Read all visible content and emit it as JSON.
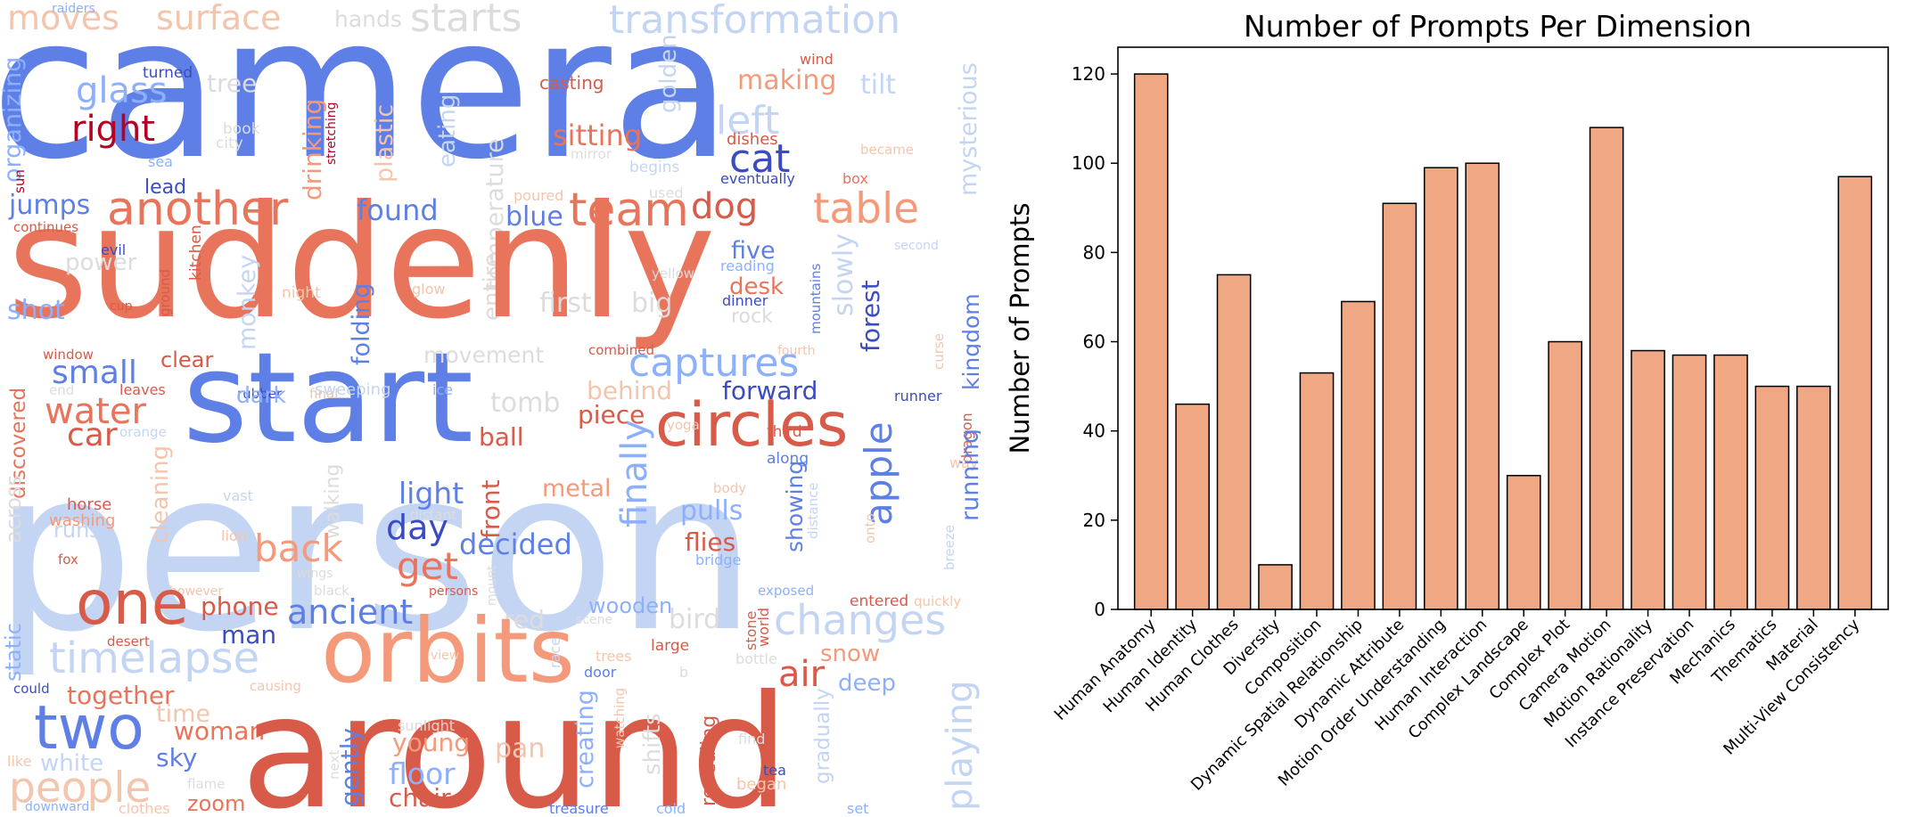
{
  "wordcloud": {
    "palette": {
      "blue_dark": "#3b4cc0",
      "blue": "#5e7fe5",
      "blue_mid": "#8db0fe",
      "blue_light": "#c4d5f3",
      "grey": "#dddcdc",
      "peach": "#f4c5ad",
      "orange_light": "#f49a7b",
      "orange": "#e7745b",
      "red": "#d85a48",
      "red_dark": "#b40426"
    },
    "words": [
      {
        "text": "moves",
        "c": "peach"
      },
      {
        "text": "surface",
        "c": "peach"
      },
      {
        "text": "hands",
        "c": "grey"
      },
      {
        "text": "starts",
        "c": "grey"
      },
      {
        "text": "transformation",
        "c": "blue_light"
      },
      {
        "text": "camera",
        "c": "blue"
      },
      {
        "text": "glass",
        "c": "blue_mid"
      },
      {
        "text": "tree",
        "c": "grey"
      },
      {
        "text": "right",
        "c": "red_dark"
      },
      {
        "text": "organizing",
        "c": "blue_mid"
      },
      {
        "text": "book",
        "c": "grey"
      },
      {
        "text": "city",
        "c": "grey"
      },
      {
        "text": "sea",
        "c": "blue_mid"
      },
      {
        "text": "lead",
        "c": "blue_dark"
      },
      {
        "text": "sun",
        "c": "red_dark"
      },
      {
        "text": "turned",
        "c": "blue_dark"
      },
      {
        "text": "raiders",
        "c": "blue_mid"
      },
      {
        "text": "stretching",
        "c": "red_dark"
      },
      {
        "text": "drinking",
        "c": "orange_light"
      },
      {
        "text": "plastic",
        "c": "peach"
      },
      {
        "text": "eating",
        "c": "blue_light"
      },
      {
        "text": "temperature",
        "c": "grey"
      },
      {
        "text": "entire",
        "c": "grey"
      },
      {
        "text": "golden",
        "c": "blue_light"
      },
      {
        "text": "casting",
        "c": "red"
      },
      {
        "text": "wind",
        "c": "red"
      },
      {
        "text": "making",
        "c": "orange_light"
      },
      {
        "text": "tilt",
        "c": "blue_light"
      },
      {
        "text": "mysterious",
        "c": "blue_light"
      },
      {
        "text": "left",
        "c": "blue_light"
      },
      {
        "text": "sitting",
        "c": "orange"
      },
      {
        "text": "mirror",
        "c": "grey"
      },
      {
        "text": "dishes",
        "c": "red"
      },
      {
        "text": "became",
        "c": "peach"
      },
      {
        "text": "begins",
        "c": "blue_light"
      },
      {
        "text": "cat",
        "c": "blue_dark"
      },
      {
        "text": "eventually",
        "c": "blue_dark"
      },
      {
        "text": "box",
        "c": "orange"
      },
      {
        "text": "used",
        "c": "grey"
      },
      {
        "text": "poured",
        "c": "peach"
      },
      {
        "text": "suddenly",
        "c": "orange"
      },
      {
        "text": "another",
        "c": "orange"
      },
      {
        "text": "jumps",
        "c": "blue"
      },
      {
        "text": "continues",
        "c": "red"
      },
      {
        "text": "found",
        "c": "blue"
      },
      {
        "text": "blue",
        "c": "blue"
      },
      {
        "text": "team",
        "c": "orange"
      },
      {
        "text": "dog",
        "c": "red"
      },
      {
        "text": "table",
        "c": "orange_light"
      },
      {
        "text": "five",
        "c": "blue"
      },
      {
        "text": "second",
        "c": "blue_light"
      },
      {
        "text": "evil",
        "c": "blue_dark"
      },
      {
        "text": "kitchen",
        "c": "red"
      },
      {
        "text": "power",
        "c": "grey"
      },
      {
        "text": "glow",
        "c": "peach"
      },
      {
        "text": "night",
        "c": "peach"
      },
      {
        "text": "desk",
        "c": "orange"
      },
      {
        "text": "reading",
        "c": "blue_mid"
      },
      {
        "text": "yellow",
        "c": "grey"
      },
      {
        "text": "dinner",
        "c": "blue_dark"
      },
      {
        "text": "slowly",
        "c": "blue_light"
      },
      {
        "text": "forest",
        "c": "blue_dark"
      },
      {
        "text": "mountains",
        "c": "blue"
      },
      {
        "text": "cup",
        "c": "red"
      },
      {
        "text": "ground",
        "c": "red"
      },
      {
        "text": "shot",
        "c": "blue_mid"
      },
      {
        "text": "monkey",
        "c": "blue_light"
      },
      {
        "text": "folding",
        "c": "blue"
      },
      {
        "text": "first",
        "c": "grey"
      },
      {
        "text": "big",
        "c": "grey"
      },
      {
        "text": "rock",
        "c": "grey"
      },
      {
        "text": "start",
        "c": "blue"
      },
      {
        "text": "window",
        "c": "red"
      },
      {
        "text": "small",
        "c": "blue"
      },
      {
        "text": "clear",
        "c": "red"
      },
      {
        "text": "rubber",
        "c": "blue_dark"
      },
      {
        "text": "final",
        "c": "peach"
      },
      {
        "text": "discovered",
        "c": "orange"
      },
      {
        "text": "movement",
        "c": "grey"
      },
      {
        "text": "combined",
        "c": "red"
      },
      {
        "text": "fourth",
        "c": "peach"
      },
      {
        "text": "captures",
        "c": "blue_mid"
      },
      {
        "text": "kingdom",
        "c": "blue"
      },
      {
        "text": "curse",
        "c": "peach"
      },
      {
        "text": "end",
        "c": "grey"
      },
      {
        "text": "leaves",
        "c": "red"
      },
      {
        "text": "water",
        "c": "orange"
      },
      {
        "text": "dark",
        "c": "blue_mid"
      },
      {
        "text": "sweeping",
        "c": "blue_light"
      },
      {
        "text": "ice",
        "c": "blue_mid"
      },
      {
        "text": "tomb",
        "c": "grey"
      },
      {
        "text": "behind",
        "c": "peach"
      },
      {
        "text": "forward",
        "c": "blue_dark"
      },
      {
        "text": "runner",
        "c": "blue_dark"
      },
      {
        "text": "circles",
        "c": "red"
      },
      {
        "text": "dragon",
        "c": "red"
      },
      {
        "text": "car",
        "c": "red"
      },
      {
        "text": "orange",
        "c": "blue_light"
      },
      {
        "text": "piece",
        "c": "red"
      },
      {
        "text": "yoga",
        "c": "peach"
      },
      {
        "text": "third",
        "c": "red"
      },
      {
        "text": "person",
        "c": "blue_light"
      },
      {
        "text": "ball",
        "c": "red"
      },
      {
        "text": "along",
        "c": "blue"
      },
      {
        "text": "way",
        "c": "peach"
      },
      {
        "text": "across",
        "c": "grey"
      },
      {
        "text": "horse",
        "c": "red"
      },
      {
        "text": "washing",
        "c": "orange_light"
      },
      {
        "text": "vast",
        "c": "blue_light"
      },
      {
        "text": "light",
        "c": "blue"
      },
      {
        "text": "front",
        "c": "red"
      },
      {
        "text": "metal",
        "c": "orange_light"
      },
      {
        "text": "finally",
        "c": "blue_mid"
      },
      {
        "text": "body",
        "c": "peach"
      },
      {
        "text": "apple",
        "c": "blue"
      },
      {
        "text": "running",
        "c": "blue"
      },
      {
        "text": "runs",
        "c": "blue_light"
      },
      {
        "text": "cleaning",
        "c": "peach"
      },
      {
        "text": "walking",
        "c": "grey"
      },
      {
        "text": "distant",
        "c": "grey"
      },
      {
        "text": "day",
        "c": "blue_dark"
      },
      {
        "text": "decided",
        "c": "blue"
      },
      {
        "text": "pulls",
        "c": "blue_mid"
      },
      {
        "text": "distance",
        "c": "blue_light"
      },
      {
        "text": "onto",
        "c": "peach"
      },
      {
        "text": "lion",
        "c": "peach"
      },
      {
        "text": "fox",
        "c": "red"
      },
      {
        "text": "back",
        "c": "orange_light"
      },
      {
        "text": "wings",
        "c": "grey"
      },
      {
        "text": "get",
        "c": "orange"
      },
      {
        "text": "flies",
        "c": "red"
      },
      {
        "text": "showing",
        "c": "blue"
      },
      {
        "text": "bridge",
        "c": "blue_mid"
      },
      {
        "text": "breeze",
        "c": "blue_light"
      },
      {
        "text": "however",
        "c": "peach"
      },
      {
        "text": "black",
        "c": "grey"
      },
      {
        "text": "persons",
        "c": "red"
      },
      {
        "text": "mount",
        "c": "grey"
      },
      {
        "text": "exposed",
        "c": "blue_mid"
      },
      {
        "text": "entered",
        "c": "red"
      },
      {
        "text": "quickly",
        "c": "peach"
      },
      {
        "text": "one",
        "c": "red"
      },
      {
        "text": "phone",
        "c": "red"
      },
      {
        "text": "ancient",
        "c": "blue"
      },
      {
        "text": "red",
        "c": "grey"
      },
      {
        "text": "wooden",
        "c": "blue_mid"
      },
      {
        "text": "bird",
        "c": "grey"
      },
      {
        "text": "changes",
        "c": "blue_light"
      },
      {
        "text": "static",
        "c": "blue_mid"
      },
      {
        "text": "desert",
        "c": "red"
      },
      {
        "text": "man",
        "c": "blue_dark"
      },
      {
        "text": "scene",
        "c": "grey"
      },
      {
        "text": "stone",
        "c": "red"
      },
      {
        "text": "world",
        "c": "red"
      },
      {
        "text": "timelapse",
        "c": "blue_light"
      },
      {
        "text": "orbits",
        "c": "orange_light"
      },
      {
        "text": "large",
        "c": "red"
      },
      {
        "text": "snow",
        "c": "orange_light"
      },
      {
        "text": "could",
        "c": "blue_dark"
      },
      {
        "text": "causing",
        "c": "peach"
      },
      {
        "text": "together",
        "c": "orange"
      },
      {
        "text": "view",
        "c": "peach"
      },
      {
        "text": "race",
        "c": "blue_light"
      },
      {
        "text": "trees",
        "c": "peach"
      },
      {
        "text": "door",
        "c": "blue"
      },
      {
        "text": "bottle",
        "c": "grey"
      },
      {
        "text": "air",
        "c": "red"
      },
      {
        "text": "deep",
        "c": "blue_mid"
      },
      {
        "text": "two",
        "c": "blue"
      },
      {
        "text": "time",
        "c": "peach"
      },
      {
        "text": "woman",
        "c": "orange"
      },
      {
        "text": "like",
        "c": "peach"
      },
      {
        "text": "white",
        "c": "blue_light"
      },
      {
        "text": "sky",
        "c": "blue"
      },
      {
        "text": "around",
        "c": "red"
      },
      {
        "text": "young",
        "c": "orange_light"
      },
      {
        "text": "sunlight",
        "c": "grey"
      },
      {
        "text": "pan",
        "c": "peach"
      },
      {
        "text": "creating",
        "c": "blue_mid"
      },
      {
        "text": "watching",
        "c": "peach"
      },
      {
        "text": "shifts",
        "c": "grey"
      },
      {
        "text": "b",
        "c": "grey"
      },
      {
        "text": "find",
        "c": "grey"
      },
      {
        "text": "gradually",
        "c": "blue_light"
      },
      {
        "text": "playing",
        "c": "blue_light"
      },
      {
        "text": "people",
        "c": "peach"
      },
      {
        "text": "flame",
        "c": "grey"
      },
      {
        "text": "zoom",
        "c": "orange"
      },
      {
        "text": "next",
        "c": "grey"
      },
      {
        "text": "gently",
        "c": "blue"
      },
      {
        "text": "floor",
        "c": "blue_mid"
      },
      {
        "text": "chair",
        "c": "red"
      },
      {
        "text": "revealing",
        "c": "red"
      },
      {
        "text": "tea",
        "c": "blue_dark"
      },
      {
        "text": "began",
        "c": "peach"
      },
      {
        "text": "downward",
        "c": "blue_mid"
      },
      {
        "text": "clothes",
        "c": "peach"
      },
      {
        "text": "treasure",
        "c": "blue"
      },
      {
        "text": "cold",
        "c": "blue_mid"
      },
      {
        "text": "set",
        "c": "blue_mid"
      }
    ]
  },
  "chart_data": {
    "type": "bar",
    "title": "Number of Prompts Per Dimension",
    "ylabel": "Number of Prompts",
    "xlabel": "",
    "ylim": [
      0,
      126
    ],
    "yticks": [
      0,
      20,
      40,
      60,
      80,
      100,
      120
    ],
    "bar_color": "#f0a784",
    "edge_color": "#000000",
    "grid": false,
    "categories": [
      "Human Anatomy",
      "Human Identity",
      "Human Clothes",
      "Diversity",
      "Composition",
      "Dynamic Spatial Relationship",
      "Dynamic Attribute",
      "Motion Order Understanding",
      "Human Interaction",
      "Complex Landscape",
      "Complex Plot",
      "Camera Motion",
      "Motion Rationality",
      "Instance Preservation",
      "Mechanics",
      "Thematics",
      "Material",
      "Multi-View Consistency"
    ],
    "values": [
      120,
      46,
      75,
      10,
      53,
      69,
      91,
      99,
      100,
      30,
      60,
      108,
      58,
      57,
      57,
      50,
      50,
      97
    ]
  }
}
